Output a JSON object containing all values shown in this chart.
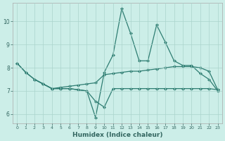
{
  "xlabel": "Humidex (Indice chaleur)",
  "bg_color": "#cceee8",
  "grid_color": "#aad4cc",
  "line_color": "#2e7d72",
  "xlim": [
    -0.5,
    23.5
  ],
  "ylim": [
    5.6,
    10.8
  ],
  "yticks": [
    6,
    7,
    8,
    9,
    10
  ],
  "xticks": [
    0,
    1,
    2,
    3,
    4,
    5,
    6,
    7,
    8,
    9,
    10,
    11,
    12,
    13,
    14,
    15,
    16,
    17,
    18,
    19,
    20,
    21,
    22,
    23
  ],
  "line1_x": [
    0,
    1,
    2,
    3,
    4,
    5,
    6,
    7,
    8,
    9,
    10,
    11,
    12,
    13,
    14,
    15,
    16,
    17,
    18,
    19,
    20,
    21,
    22,
    23
  ],
  "line1_y": [
    8.2,
    7.8,
    7.5,
    7.3,
    7.1,
    7.1,
    7.1,
    7.05,
    7.0,
    5.85,
    7.8,
    8.55,
    10.55,
    9.5,
    8.3,
    8.3,
    9.85,
    9.1,
    8.3,
    8.1,
    8.1,
    7.75,
    7.5,
    7.0
  ],
  "line2_x": [
    0,
    1,
    2,
    3,
    4,
    5,
    6,
    7,
    8,
    9,
    10,
    11,
    12,
    13,
    14,
    15,
    16,
    17,
    18,
    19,
    20,
    21,
    22,
    23
  ],
  "line2_y": [
    8.2,
    7.8,
    7.5,
    7.3,
    7.1,
    7.15,
    7.2,
    7.25,
    7.3,
    7.35,
    7.7,
    7.75,
    7.8,
    7.85,
    7.85,
    7.9,
    7.95,
    8.0,
    8.05,
    8.05,
    8.05,
    8.0,
    7.85,
    7.05
  ],
  "line3_x": [
    2,
    3,
    4,
    5,
    6,
    7,
    8,
    9,
    10,
    11,
    12,
    13,
    14,
    15,
    16,
    17,
    18,
    19,
    20,
    21,
    22,
    23
  ],
  "line3_y": [
    7.5,
    7.3,
    7.1,
    7.1,
    7.1,
    7.05,
    7.0,
    6.55,
    6.3,
    7.1,
    7.1,
    7.1,
    7.1,
    7.1,
    7.1,
    7.1,
    7.1,
    7.1,
    7.1,
    7.1,
    7.1,
    7.05
  ]
}
